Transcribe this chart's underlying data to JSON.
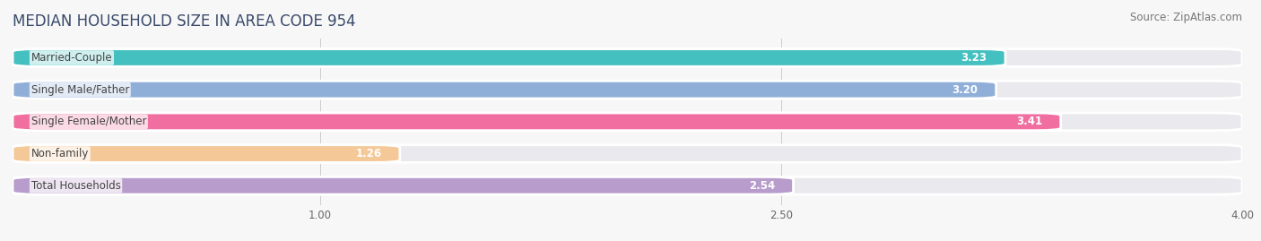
{
  "title": "MEDIAN HOUSEHOLD SIZE IN AREA CODE 954",
  "source": "Source: ZipAtlas.com",
  "categories": [
    "Married-Couple",
    "Single Male/Father",
    "Single Female/Mother",
    "Non-family",
    "Total Households"
  ],
  "values": [
    3.23,
    3.2,
    3.41,
    1.26,
    2.54
  ],
  "bar_colors": [
    "#45c0c0",
    "#90afd8",
    "#f06fa0",
    "#f5c898",
    "#b89ccb"
  ],
  "xlim": [
    0,
    4.0
  ],
  "xstart": 0.0,
  "xticks": [
    1.0,
    2.5,
    4.0
  ],
  "title_color": "#3a4a6b",
  "source_color": "#777777",
  "label_color": "#444444",
  "value_color": "#ffffff",
  "bg_color": "#f7f7f7",
  "bar_bg_color": "#e9e9ee",
  "title_fontsize": 12,
  "label_fontsize": 8.5,
  "value_fontsize": 8.5,
  "source_fontsize": 8.5,
  "bar_height": 0.55,
  "bar_gap": 1.0,
  "rounding": 0.08
}
